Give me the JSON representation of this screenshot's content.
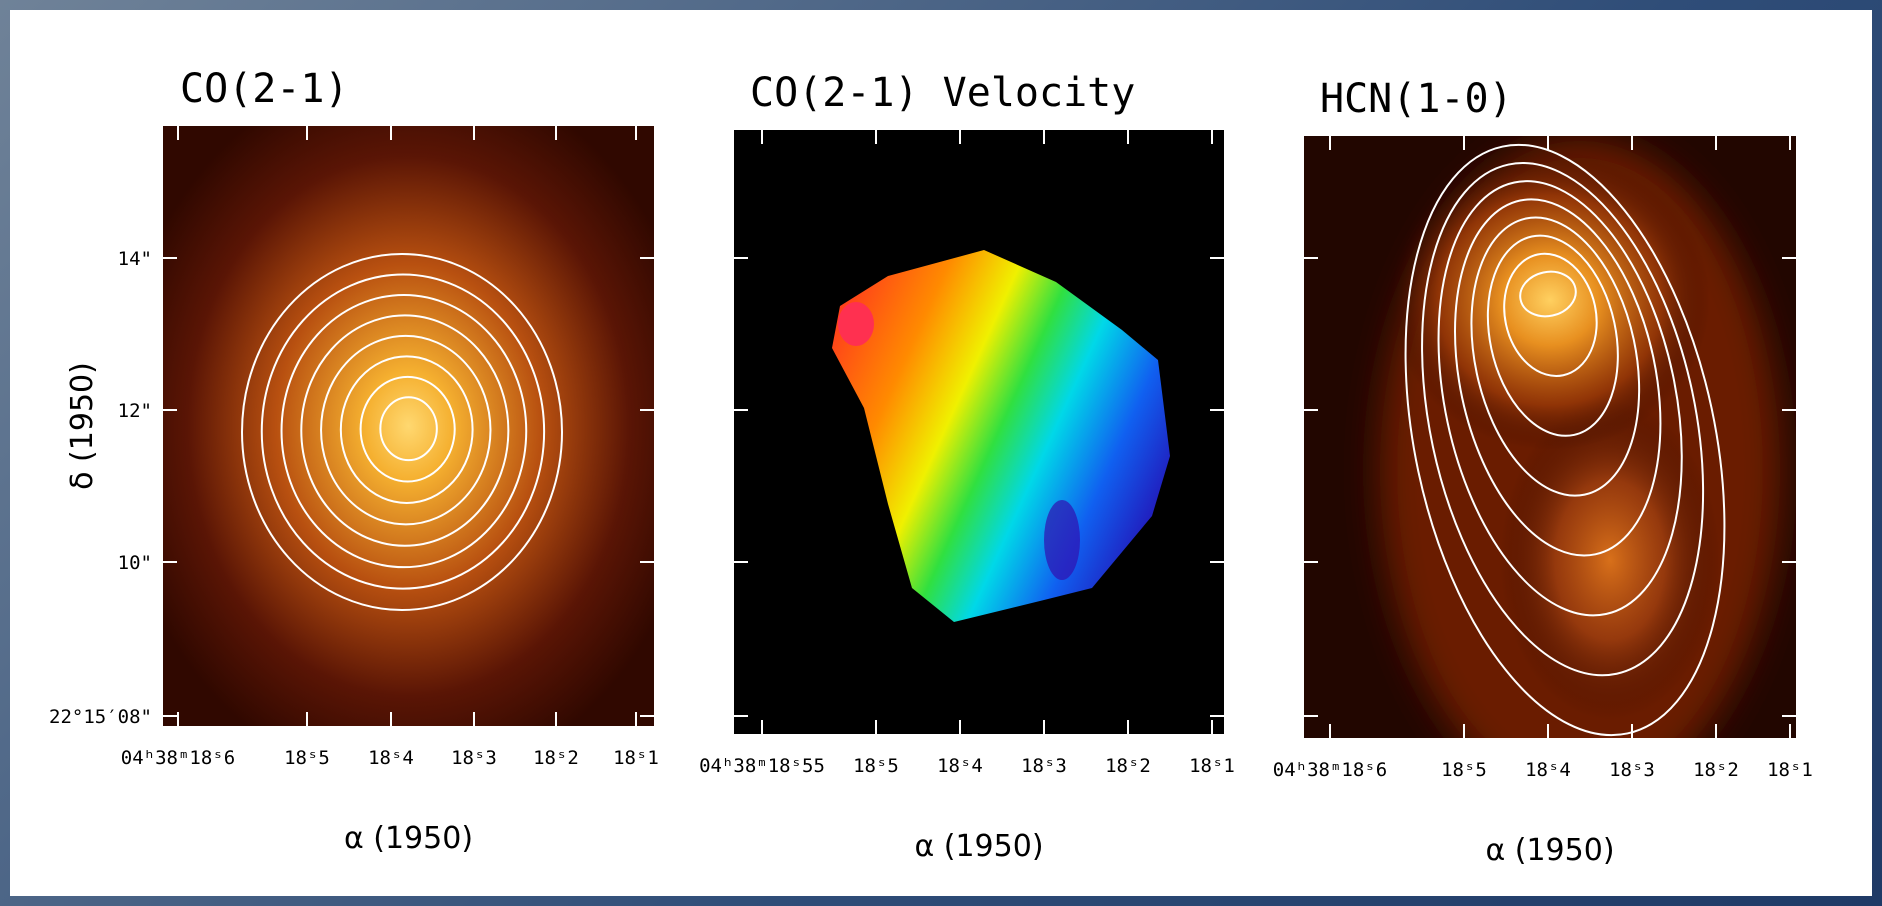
{
  "panels": [
    {
      "title": "CO(2-1)",
      "x_ticks": [
        "04ʰ38ᵐ18ˢ6",
        "18ˢ5",
        "18ˢ4",
        "18ˢ3",
        "18ˢ2",
        "18ˢ1"
      ],
      "x_label": "α (1950)"
    },
    {
      "title": "CO(2-1) Velocity",
      "x_ticks": [
        "04ʰ38ᵐ18ˢ55",
        "18ˢ5",
        "18ˢ4",
        "18ˢ3",
        "18ˢ2",
        "18ˢ1"
      ],
      "x_label": "α (1950)"
    },
    {
      "title": "HCN(1-0)",
      "x_ticks": [
        "04ʰ38ᵐ18ˢ6",
        "18ˢ5",
        "18ˢ4",
        "18ˢ3",
        "18ˢ2",
        "18ˢ1"
      ],
      "x_label": "α (1950)"
    }
  ],
  "y_axis": {
    "label": "δ (1950)",
    "ticks": [
      "14\"",
      "12\"",
      "10\"",
      "22°15′08\""
    ]
  }
}
